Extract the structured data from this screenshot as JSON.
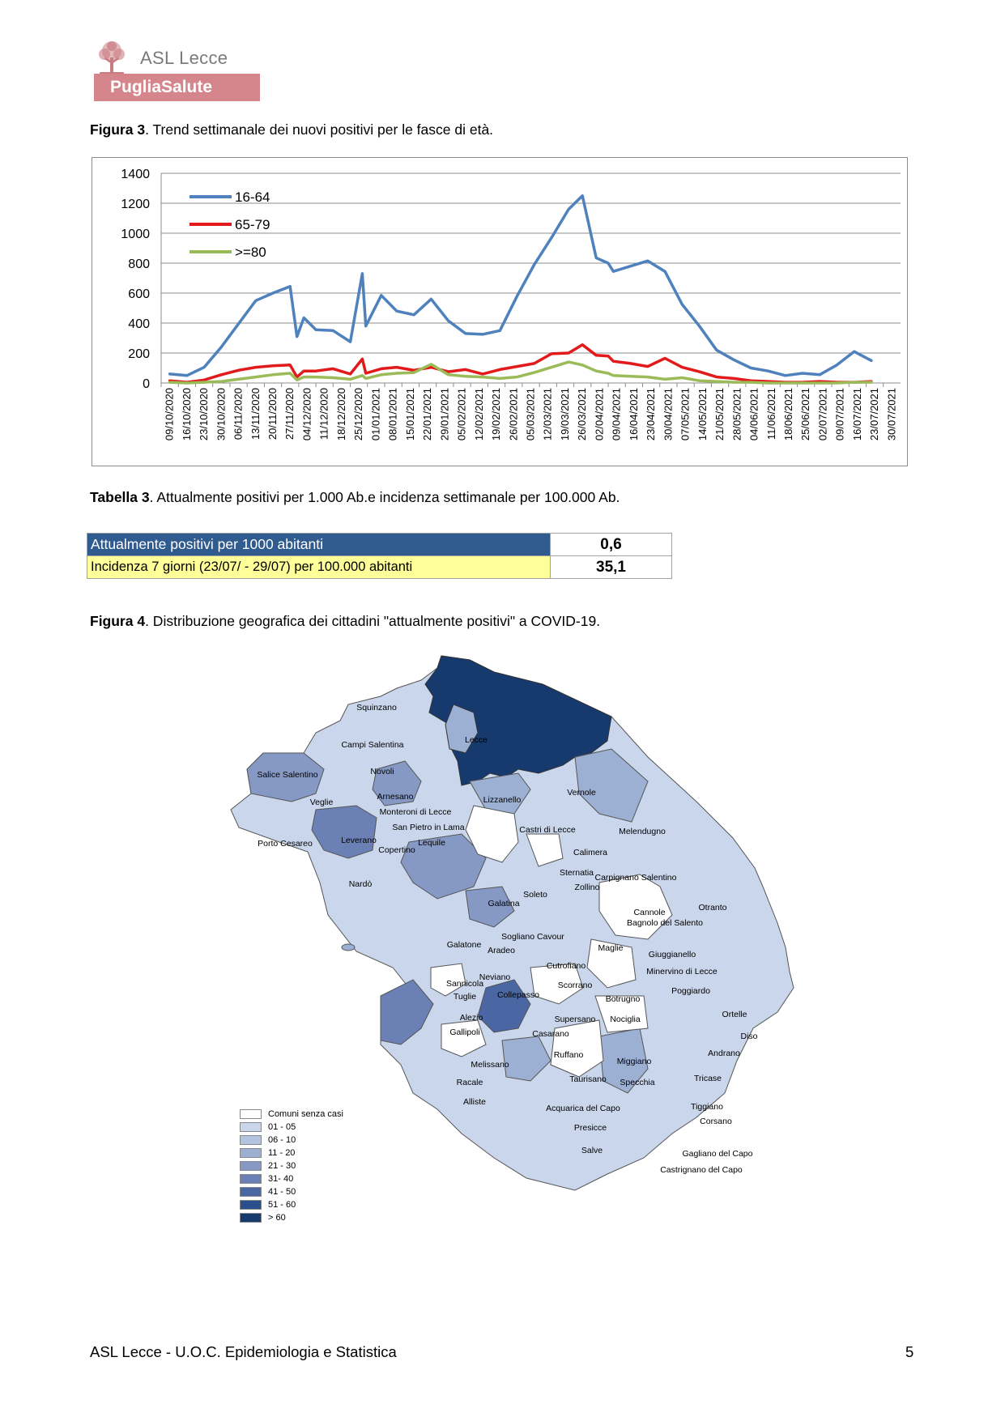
{
  "header": {
    "org_name": "ASL Lecce",
    "brand_band": "PugliaSalute",
    "colors": {
      "band": "#d4868c",
      "tree": "#c97b82"
    }
  },
  "figure3": {
    "caption_bold": "Figura 3",
    "caption_rest": ". Trend settimanale dei nuovi positivi per le fasce di età."
  },
  "chart_data": {
    "type": "line",
    "title": "",
    "xlabel": "",
    "ylabel": "",
    "ylim": [
      0,
      1400
    ],
    "yticks": [
      0,
      200,
      400,
      600,
      800,
      1000,
      1200,
      1400
    ],
    "grid": true,
    "legend_position": "top-left",
    "categories": [
      "09/10/2020",
      "16/10/2020",
      "23/10/2020",
      "30/10/2020",
      "06/11/2020",
      "13/11/2020",
      "20/11/2020",
      "27/11/2020",
      "04/12/2020",
      "11/12/2020",
      "18/12/2020",
      "25/12/2020",
      "01/01/2021",
      "08/01/2021",
      "15/01/2021",
      "22/01/2021",
      "29/01/2021",
      "05/02/2021",
      "12/02/2021",
      "19/02/2021",
      "26/02/2021",
      "05/03/2021",
      "12/03/2021",
      "19/03/2021",
      "26/03/2021",
      "02/04/2021",
      "09/04/2021",
      "16/04/2021",
      "23/04/2021",
      "30/04/2021",
      "07/05/2021",
      "14/05/2021",
      "21/05/2021",
      "28/05/2021",
      "04/06/2021",
      "11/06/2021",
      "18/06/2021",
      "25/06/2021",
      "02/07/2021",
      "09/07/2021",
      "16/07/2021",
      "23/07/2021",
      "30/07/2021"
    ],
    "series": [
      {
        "name": "16-64",
        "color": "#4f81bd",
        "points": [
          [
            0,
            60
          ],
          [
            1,
            50
          ],
          [
            2,
            105
          ],
          [
            3,
            240
          ],
          [
            4,
            395
          ],
          [
            5,
            550
          ],
          [
            6,
            600
          ],
          [
            7,
            645
          ],
          [
            7.4,
            310
          ],
          [
            7.8,
            435
          ],
          [
            8.5,
            355
          ],
          [
            9.5,
            350
          ],
          [
            10.5,
            275
          ],
          [
            11.2,
            730
          ],
          [
            11.4,
            380
          ],
          [
            12.3,
            585
          ],
          [
            13.2,
            480
          ],
          [
            14.2,
            455
          ],
          [
            15.2,
            560
          ],
          [
            16.2,
            415
          ],
          [
            17.2,
            330
          ],
          [
            18.2,
            325
          ],
          [
            19.2,
            350
          ],
          [
            20.2,
            580
          ],
          [
            21.2,
            790
          ],
          [
            22.2,
            970
          ],
          [
            23.2,
            1160
          ],
          [
            24.0,
            1250
          ],
          [
            24.8,
            835
          ],
          [
            25.5,
            800
          ],
          [
            25.8,
            745
          ],
          [
            26.8,
            780
          ],
          [
            27.8,
            815
          ],
          [
            28.8,
            745
          ],
          [
            29.8,
            525
          ],
          [
            30.8,
            380
          ],
          [
            31.8,
            220
          ],
          [
            32.8,
            155
          ],
          [
            33.8,
            100
          ],
          [
            34.8,
            80
          ],
          [
            35.8,
            50
          ],
          [
            36.8,
            65
          ],
          [
            37.8,
            55
          ],
          [
            38.8,
            120
          ],
          [
            39.8,
            210
          ],
          [
            40.8,
            150
          ]
        ]
      },
      {
        "name": "65-79",
        "color": "#e31a1c",
        "points": [
          [
            0,
            15
          ],
          [
            1,
            5
          ],
          [
            2,
            20
          ],
          [
            3,
            55
          ],
          [
            4,
            85
          ],
          [
            5,
            105
          ],
          [
            6,
            115
          ],
          [
            7,
            120
          ],
          [
            7.4,
            40
          ],
          [
            7.8,
            80
          ],
          [
            8.5,
            80
          ],
          [
            9.5,
            95
          ],
          [
            10.5,
            60
          ],
          [
            11.2,
            160
          ],
          [
            11.4,
            65
          ],
          [
            12.3,
            95
          ],
          [
            13.2,
            105
          ],
          [
            14.2,
            85
          ],
          [
            15.2,
            105
          ],
          [
            16.2,
            75
          ],
          [
            17.2,
            90
          ],
          [
            18.2,
            60
          ],
          [
            19.2,
            90
          ],
          [
            20.2,
            110
          ],
          [
            21.2,
            130
          ],
          [
            22.2,
            195
          ],
          [
            23.2,
            200
          ],
          [
            24.0,
            255
          ],
          [
            24.8,
            185
          ],
          [
            25.5,
            180
          ],
          [
            25.8,
            145
          ],
          [
            26.8,
            130
          ],
          [
            27.8,
            110
          ],
          [
            28.8,
            165
          ],
          [
            29.8,
            105
          ],
          [
            30.8,
            75
          ],
          [
            31.8,
            40
          ],
          [
            32.8,
            30
          ],
          [
            33.8,
            15
          ],
          [
            34.8,
            10
          ],
          [
            35.8,
            5
          ],
          [
            36.8,
            5
          ],
          [
            37.8,
            10
          ],
          [
            38.8,
            5
          ],
          [
            39.8,
            5
          ],
          [
            40.8,
            10
          ]
        ]
      },
      {
        "name": ">=80",
        "color": "#9bbb59",
        "points": [
          [
            0,
            5
          ],
          [
            1,
            0
          ],
          [
            2,
            5
          ],
          [
            3,
            10
          ],
          [
            4,
            25
          ],
          [
            5,
            40
          ],
          [
            6,
            55
          ],
          [
            7,
            65
          ],
          [
            7.4,
            20
          ],
          [
            7.8,
            40
          ],
          [
            8.5,
            40
          ],
          [
            9.5,
            35
          ],
          [
            10.5,
            25
          ],
          [
            11.2,
            50
          ],
          [
            11.4,
            30
          ],
          [
            12.3,
            55
          ],
          [
            13.2,
            65
          ],
          [
            14.2,
            70
          ],
          [
            15.2,
            125
          ],
          [
            16.2,
            55
          ],
          [
            17.2,
            45
          ],
          [
            18.2,
            40
          ],
          [
            19.2,
            30
          ],
          [
            20.2,
            40
          ],
          [
            21.2,
            70
          ],
          [
            22.2,
            105
          ],
          [
            23.2,
            140
          ],
          [
            24.0,
            120
          ],
          [
            24.8,
            80
          ],
          [
            25.5,
            65
          ],
          [
            25.8,
            50
          ],
          [
            26.8,
            45
          ],
          [
            27.8,
            40
          ],
          [
            28.8,
            25
          ],
          [
            29.8,
            35
          ],
          [
            30.8,
            15
          ],
          [
            31.8,
            10
          ],
          [
            32.8,
            5
          ],
          [
            33.8,
            5
          ],
          [
            34.8,
            0
          ],
          [
            35.8,
            0
          ],
          [
            36.8,
            0
          ],
          [
            37.8,
            0
          ],
          [
            38.8,
            0
          ],
          [
            39.8,
            5
          ],
          [
            40.8,
            5
          ]
        ]
      }
    ]
  },
  "table3": {
    "caption_bold": "Tabella 3",
    "caption_rest": ". Attualmente positivi per 1.000 Ab.e incidenza settimanale per 100.000 Ab.",
    "rows": [
      {
        "label": "Attualmente positivi per 1000 abitanti",
        "value": "0,6"
      },
      {
        "label": "Incidenza 7 giorni (23/07/ - 29/07)  per 100.000 abitanti",
        "value": "35,1"
      }
    ],
    "colors": {
      "row1_bg": "#2f5b8f",
      "row2_bg": "#ffff99"
    }
  },
  "figure4": {
    "caption_bold": "Figura 4",
    "caption_rest": ". Distribuzione  geografica dei cittadini \"attualmente positivi\" a COVID-19.",
    "map": {
      "palette": [
        "#ffffff",
        "#c9d6eb",
        "#b3c4e0",
        "#9cb0d4",
        "#8599c4",
        "#6b80b4",
        "#4a66a3",
        "#2a4f8d",
        "#173a6e"
      ],
      "legend": [
        {
          "label": "Comuni senza casi",
          "color": "#ffffff"
        },
        {
          "label": "01 - 05",
          "color": "#c9d6eb"
        },
        {
          "label": "06 - 10",
          "color": "#b3c4e0"
        },
        {
          "label": "11 - 20",
          "color": "#9cb0d4"
        },
        {
          "label": "21 - 30",
          "color": "#8599c4"
        },
        {
          "label": "31- 40",
          "color": "#6b80b4"
        },
        {
          "label": "41 - 50",
          "color": "#4a66a3"
        },
        {
          "label": "51 - 60",
          "color": "#2a4f8d"
        },
        {
          "label": "> 60",
          "color": "#173a6e"
        }
      ],
      "towns": [
        "Squinzano",
        "Campi Salentina",
        "Lecce",
        "Salice Salentino",
        "Novoli",
        "Veglie",
        "Arnesano",
        "Lizzanello",
        "Vernole",
        "Monteroni di Lecce",
        "San Pietro in Lama",
        "Castri di Lecce",
        "Melendugno",
        "Porto Cesareo",
        "Leverano",
        "Lequile",
        "Copertino",
        "Calimera",
        "Sternatia",
        "Zollino",
        "Carpignano Salentino",
        "Nardò",
        "Soleto",
        "Galatina",
        "Cannole",
        "Otranto",
        "Bagnolo del Salento",
        "Sogliano Cavour",
        "Galatone",
        "Aradeo",
        "Maglie",
        "Giuggianello",
        "Cutrofiano",
        "Minervino di Lecce",
        "Neviano",
        "Sannicola",
        "Scorrano",
        "Poggiardo",
        "Tuglie",
        "Collepasso",
        "Botrugno",
        "Alezio",
        "Supersano",
        "Nociglia",
        "Ortelle",
        "Gallipoli",
        "Casarano",
        "Diso",
        "Andrano",
        "Ruffano",
        "Miggiano",
        "Melissano",
        "Taurisano",
        "Specchia",
        "Tricase",
        "Racale",
        "Alliste",
        "Tiggiano",
        "Acquarica del Capo",
        "Corsano",
        "Presicce",
        "Salve",
        "Gagliano del Capo",
        "Castrignano del Capo"
      ]
    }
  },
  "footer": {
    "left": "ASL Lecce - U.O.C. Epidemiologia e Statistica",
    "page_number": "5"
  }
}
